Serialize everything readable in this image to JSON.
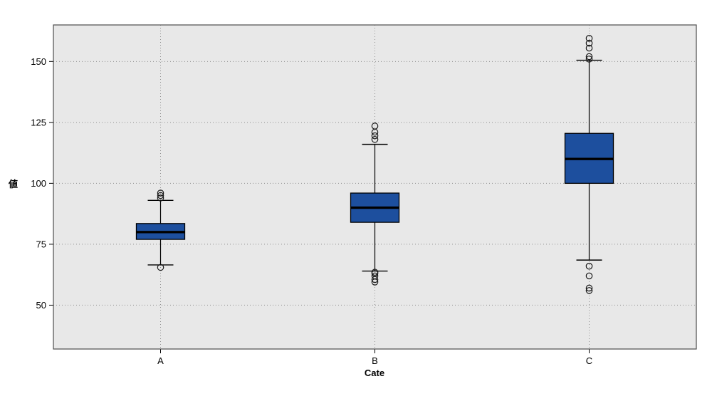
{
  "chart_data": {
    "type": "boxplot",
    "title": "",
    "xlabel": "Cate",
    "ylabel": "値",
    "categories": [
      "A",
      "B",
      "C"
    ],
    "yticks": [
      50,
      75,
      100,
      125,
      150
    ],
    "ylim": [
      32,
      165
    ],
    "grid": "dotted horizontal at ticks and vertical at categories",
    "legend": "none",
    "series": [
      {
        "category": "A",
        "q1": 77,
        "median": 80,
        "q3": 83.5,
        "whisker_low": 66.5,
        "whisker_high": 93,
        "outliers_high": [
          94,
          95,
          96
        ],
        "outliers_low": [
          65.5
        ]
      },
      {
        "category": "B",
        "q1": 84,
        "median": 90,
        "q3": 96,
        "whisker_low": 64,
        "whisker_high": 116,
        "outliers_high": [
          118,
          119.5,
          121,
          123.5
        ],
        "outliers_low": [
          63.5,
          63,
          62,
          60.5,
          59.5
        ]
      },
      {
        "category": "C",
        "q1": 100,
        "median": 110,
        "q3": 120.5,
        "whisker_low": 68.5,
        "whisker_high": 150.5,
        "outliers_high": [
          151,
          152,
          155.5,
          157.5,
          159.5
        ],
        "outliers_low": [
          66,
          62,
          57,
          56
        ]
      }
    ],
    "colors": {
      "box_fill": "#1d4f9e",
      "box_border": "#000000",
      "median": "#000000",
      "whisker": "#000000",
      "outlier_stroke": "#1a1a1a",
      "plot_bg": "#e8e8e8",
      "grid": "#8f8f8f",
      "frame": "#4d4d4d",
      "text": "#000000"
    }
  }
}
